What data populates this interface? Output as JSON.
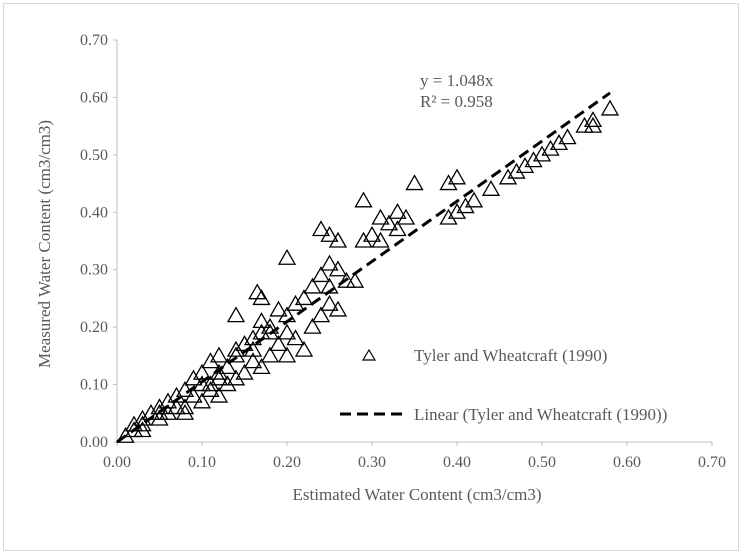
{
  "chart_data": {
    "type": "scatter",
    "title": "",
    "xlabel": "Estimated Water Content (cm3/cm3)",
    "ylabel": "Measured Water Content (cm3/cm3)",
    "xlim": [
      0,
      0.7
    ],
    "ylim": [
      0,
      0.7
    ],
    "x_ticks": [
      "0.00",
      "0.10",
      "0.20",
      "0.30",
      "0.40",
      "0.50",
      "0.60",
      "0.70"
    ],
    "y_ticks": [
      "0.00",
      "0.10",
      "0.20",
      "0.30",
      "0.40",
      "0.50",
      "0.60",
      "0.70"
    ],
    "grid": false,
    "legend_position": "right",
    "trendline": {
      "name": "Linear (Tyler and Wheatcraft (1990))",
      "slope": 1.048,
      "x_range": [
        0,
        0.58
      ],
      "equation": "y = 1.048x",
      "r_squared": "R² = 0.958"
    },
    "series": [
      {
        "name": "Tyler and Wheatcraft (1990)",
        "marker": "triangle-open",
        "color": "#000000",
        "x": [
          0.01,
          0.02,
          0.02,
          0.03,
          0.03,
          0.04,
          0.05,
          0.05,
          0.06,
          0.06,
          0.07,
          0.07,
          0.08,
          0.08,
          0.09,
          0.09,
          0.1,
          0.1,
          0.1,
          0.11,
          0.11,
          0.12,
          0.12,
          0.12,
          0.13,
          0.13,
          0.14,
          0.14,
          0.14,
          0.15,
          0.15,
          0.16,
          0.16,
          0.17,
          0.17,
          0.17,
          0.18,
          0.18,
          0.19,
          0.19,
          0.2,
          0.2,
          0.2,
          0.21,
          0.21,
          0.22,
          0.22,
          0.23,
          0.23,
          0.24,
          0.24,
          0.25,
          0.25,
          0.25,
          0.26,
          0.26,
          0.27,
          0.28,
          0.29,
          0.29,
          0.3,
          0.31,
          0.31,
          0.32,
          0.33,
          0.33,
          0.34,
          0.35,
          0.39,
          0.39,
          0.4,
          0.4,
          0.41,
          0.42,
          0.44,
          0.46,
          0.47,
          0.48,
          0.49,
          0.5,
          0.51,
          0.52,
          0.53,
          0.55,
          0.56,
          0.56,
          0.58,
          0.14,
          0.165,
          0.17,
          0.2,
          0.24,
          0.25,
          0.26,
          0.11,
          0.12,
          0.16,
          0.18,
          0.08,
          0.05,
          0.03
        ],
        "y": [
          0.01,
          0.02,
          0.03,
          0.02,
          0.04,
          0.05,
          0.04,
          0.06,
          0.05,
          0.07,
          0.06,
          0.08,
          0.05,
          0.09,
          0.08,
          0.11,
          0.07,
          0.1,
          0.12,
          0.09,
          0.14,
          0.08,
          0.11,
          0.15,
          0.1,
          0.13,
          0.11,
          0.15,
          0.16,
          0.12,
          0.17,
          0.14,
          0.18,
          0.13,
          0.19,
          0.21,
          0.15,
          0.2,
          0.17,
          0.23,
          0.15,
          0.19,
          0.22,
          0.18,
          0.24,
          0.16,
          0.25,
          0.2,
          0.27,
          0.22,
          0.29,
          0.24,
          0.27,
          0.31,
          0.23,
          0.3,
          0.28,
          0.28,
          0.35,
          0.42,
          0.36,
          0.35,
          0.39,
          0.38,
          0.37,
          0.4,
          0.39,
          0.45,
          0.39,
          0.45,
          0.4,
          0.46,
          0.41,
          0.42,
          0.44,
          0.46,
          0.47,
          0.48,
          0.49,
          0.5,
          0.51,
          0.52,
          0.53,
          0.55,
          0.55,
          0.56,
          0.58,
          0.22,
          0.26,
          0.25,
          0.32,
          0.37,
          0.36,
          0.35,
          0.1,
          0.12,
          0.16,
          0.19,
          0.06,
          0.05,
          0.03
        ]
      }
    ]
  }
}
